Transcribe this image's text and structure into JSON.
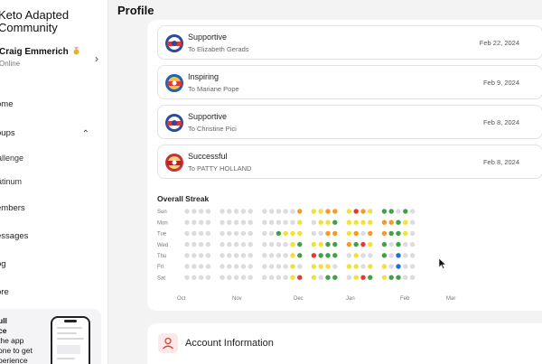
{
  "sidebar": {
    "community": "Keto Adapted Community",
    "user_name": "Craig Emmerich",
    "user_status": "Online",
    "nav": {
      "home": "ome",
      "groups": "oups",
      "challenge": "allenge",
      "platinum": "atinum",
      "members": "embers",
      "messages": "essages",
      "blog": "og",
      "more": "ore"
    },
    "promo": {
      "title": "ull",
      "title2": "ce",
      "line1": "the app",
      "line2": "one to get",
      "line3": "perience"
    }
  },
  "header": {
    "title": "Profile"
  },
  "kudos": [
    {
      "type": "Supportive",
      "to": "To Elizabeth Gerads",
      "date": "Feb 22, 2024",
      "badge": "supportive-badge"
    },
    {
      "type": "Inspiring",
      "to": "To Mariane Pope",
      "date": "Feb 9, 2024",
      "badge": "inspiring-badge"
    },
    {
      "type": "Supportive",
      "to": "To Christine Pici",
      "date": "Feb 8, 2024",
      "badge": "supportive-badge"
    },
    {
      "type": "Successful",
      "to": "To PATTY HOLLAND",
      "date": "Feb 8, 2024",
      "badge": "successful-badge"
    }
  ],
  "streak": {
    "title": "Overall Streak",
    "days": [
      "Sun",
      "Mon",
      "Tue",
      "Wed",
      "Thu",
      "Fri",
      "Sat"
    ],
    "months": [
      "Oct",
      "Nov",
      "Dec",
      "Jan",
      "Feb",
      "Mar"
    ],
    "colors": {
      "0": "#dcdcdf",
      "1": "#e53935",
      "2": "#f59a23",
      "3": "#f3e03a",
      "4": "#43a047",
      "5": "#1e6fd9"
    },
    "columns": [
      "0000000",
      "0000000",
      "0000000",
      "0000000",
      "",
      "0000000",
      "0000000",
      "0000000",
      "0000000",
      "0000000",
      "",
      "0000000",
      "0000000",
      "0040000",
      "0030000",
      "0033333",
      "2334401",
      "",
      "3003133",
      "3303430",
      "2324434",
      "2424404",
      "",
      "3332030",
      "1324333",
      "2301001",
      "3323034",
      "",
      "4224433",
      "4240004",
      "0444554",
      "4330000",
      "0000000"
    ]
  },
  "account": {
    "title": "Account Information"
  }
}
